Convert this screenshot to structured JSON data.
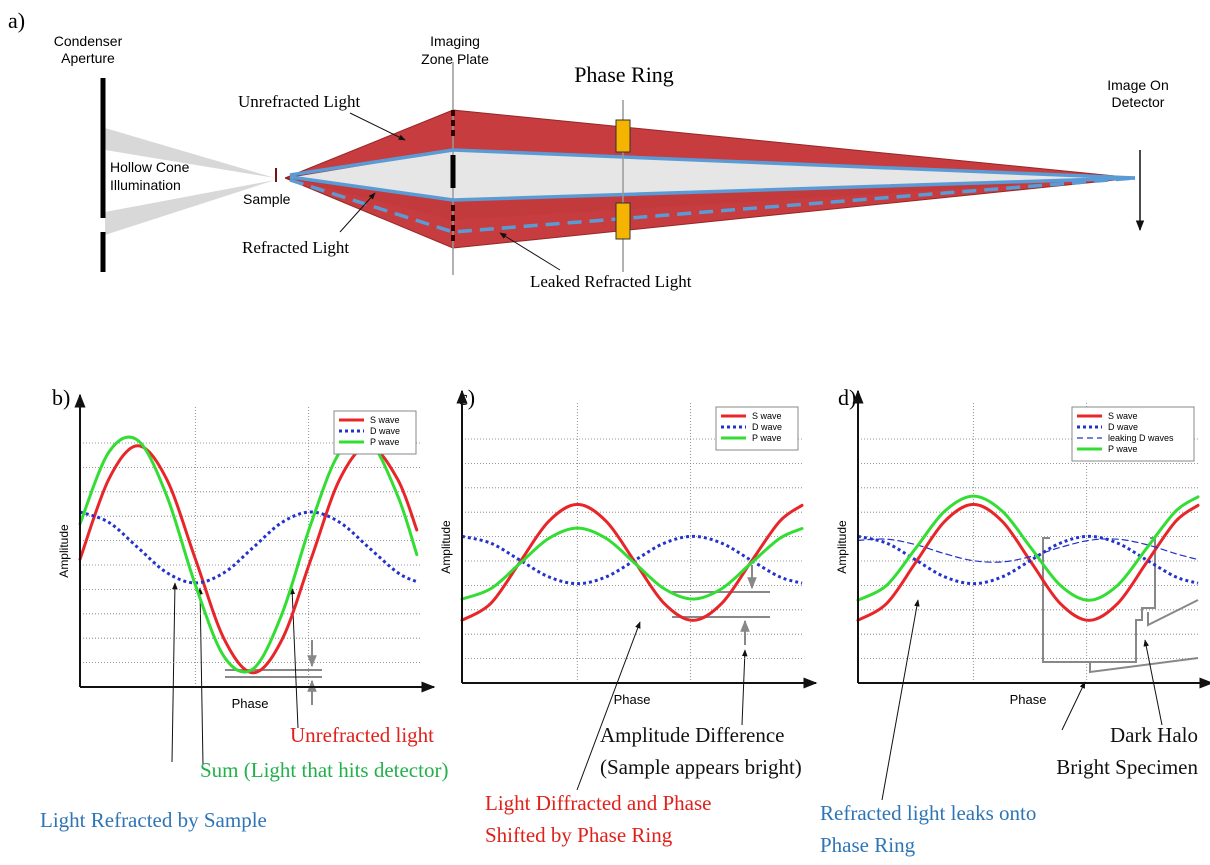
{
  "diagram": {
    "label": "a)",
    "condenser": [
      "Condenser",
      "Aperture"
    ],
    "hollow_cone": [
      "Hollow Cone",
      "Illumination"
    ],
    "sample": "Sample",
    "zone_plate": [
      "Imaging",
      "Zone Plate"
    ],
    "phase_ring": "Phase Ring",
    "unrefracted": "Unrefracted Light",
    "refracted": "Refracted Light",
    "leaked": "Leaked Refracted Light",
    "detector": [
      "Image On",
      "Detector"
    ]
  },
  "chart_data": [
    {
      "type": "line",
      "panel_label": "b)",
      "x_label": "Phase",
      "y_label": "Amplitude",
      "grid": true,
      "legend": "top-right",
      "xlim": [
        0,
        530
      ],
      "ylim": [
        0,
        11.5
      ],
      "x": [
        0,
        45,
        90,
        135,
        180,
        225,
        270,
        315,
        360,
        405,
        450,
        495,
        525
      ],
      "series": [
        {
          "name": "S wave",
          "color": "#e8262a",
          "dash": "solid",
          "values": [
            5.4,
            8.79,
            10.2,
            8.79,
            5.4,
            2.01,
            0.6,
            2.01,
            5.4,
            8.79,
            10.2,
            8.79,
            6.64
          ]
        },
        {
          "name": "D wave",
          "color": "#2233cc",
          "dash": "dotted",
          "values": [
            7.4,
            6.96,
            5.9,
            4.84,
            4.4,
            4.84,
            5.9,
            6.96,
            7.4,
            6.96,
            5.9,
            4.84,
            4.45
          ]
        },
        {
          "name": "P wave",
          "color": "#33dd33",
          "dash": "solid",
          "values": [
            6.9,
            9.93,
            10.43,
            8.1,
            4.3,
            1.27,
            0.77,
            3.1,
            6.9,
            9.93,
            10.43,
            8.1,
            5.6
          ]
        }
      ],
      "annotations": [
        {
          "lines": [
            "Unrefracted light"
          ],
          "color": "#e0201b"
        },
        {
          "lines": [
            "Sum (Light that hits detector)"
          ],
          "color": "#22b04b"
        },
        {
          "lines": [
            "Light Refracted by Sample"
          ],
          "color": "#2e75b6"
        }
      ]
    },
    {
      "type": "line",
      "panel_label": "c)",
      "x_label": "Phase",
      "y_label": "Amplitude",
      "grid": true,
      "legend": "top-right",
      "xlim": [
        0,
        530
      ],
      "ylim": [
        0,
        11.5
      ],
      "x": [
        0,
        45,
        90,
        135,
        180,
        225,
        270,
        315,
        360,
        405,
        450,
        495,
        530
      ],
      "series": [
        {
          "name": "S wave",
          "color": "#e8262a",
          "dash": "solid",
          "values": [
            2.65,
            3.37,
            5.1,
            6.83,
            7.55,
            6.83,
            5.1,
            3.37,
            2.65,
            3.37,
            5.1,
            6.83,
            7.51
          ]
        },
        {
          "name": "D wave",
          "color": "#2233cc",
          "dash": "dotted",
          "values": [
            6.2,
            5.91,
            5.2,
            4.49,
            4.2,
            4.49,
            5.2,
            5.91,
            6.2,
            5.91,
            5.2,
            4.49,
            4.22
          ]
        },
        {
          "name": "P wave",
          "color": "#33dd33",
          "dash": "solid",
          "values": [
            3.55,
            3.99,
            5.05,
            6.11,
            6.55,
            6.11,
            5.05,
            3.99,
            3.55,
            3.99,
            5.05,
            6.11,
            6.53
          ]
        }
      ],
      "annotations": [
        {
          "lines": [
            "Amplitude Difference",
            "(Sample appears bright)"
          ],
          "color": "#111111"
        },
        {
          "lines": [
            "Light Diffracted and Phase",
            "Shifted by Phase Ring"
          ],
          "color": "#e0201b"
        }
      ]
    },
    {
      "type": "line",
      "panel_label": "d)",
      "x_label": "Phase",
      "y_label": "Amplitude",
      "grid": true,
      "legend": "top-right",
      "xlim": [
        0,
        530
      ],
      "ylim": [
        0,
        11.5
      ],
      "x": [
        0,
        45,
        90,
        135,
        180,
        225,
        270,
        315,
        360,
        405,
        450,
        495,
        530
      ],
      "series": [
        {
          "name": "S wave",
          "color": "#e8262a",
          "dash": "solid",
          "values": [
            2.65,
            3.37,
            5.1,
            6.83,
            7.55,
            6.83,
            5.1,
            3.37,
            2.65,
            3.37,
            5.1,
            6.83,
            7.51
          ]
        },
        {
          "name": "D wave",
          "color": "#2233cc",
          "dash": "dotted",
          "values": [
            6.2,
            5.91,
            5.2,
            4.49,
            4.2,
            4.49,
            5.2,
            5.91,
            6.2,
            5.91,
            5.2,
            4.49,
            4.22
          ]
        },
        {
          "name": "leaking D waves",
          "color": "#2233cc",
          "dash": "dashed",
          "values": [
            6.03,
            6.08,
            5.85,
            5.47,
            5.17,
            5.12,
            5.35,
            5.73,
            6.03,
            6.08,
            5.85,
            5.47,
            5.22
          ]
        },
        {
          "name": "P wave",
          "color": "#33dd33",
          "dash": "solid",
          "values": [
            3.5,
            4.14,
            5.7,
            7.26,
            7.9,
            7.26,
            5.7,
            4.14,
            3.5,
            4.14,
            5.7,
            7.26,
            7.87
          ]
        }
      ],
      "annotations": [
        {
          "lines": [
            "Dark Halo",
            "Bright Specimen"
          ],
          "color": "#111111"
        },
        {
          "lines": [
            "Refracted light leaks onto",
            "Phase Ring"
          ],
          "color": "#2e75b6"
        }
      ]
    }
  ]
}
